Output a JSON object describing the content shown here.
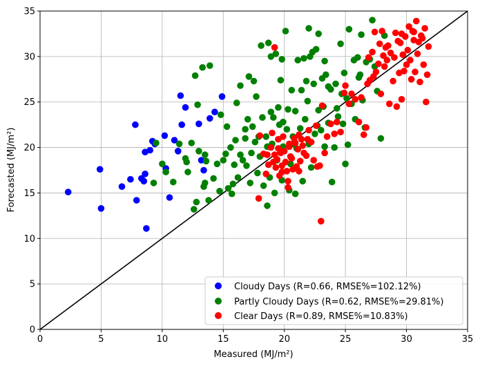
{
  "chart_data": {
    "type": "scatter",
    "xlabel": "Measured (MJ/m²)",
    "ylabel": "Forecasted (MJ/m²)",
    "xlim": [
      0,
      35
    ],
    "ylim": [
      0,
      35
    ],
    "xticks": [
      0,
      5,
      10,
      15,
      20,
      25,
      30,
      35
    ],
    "yticks": [
      0,
      5,
      10,
      15,
      20,
      25,
      30,
      35
    ],
    "grid": true,
    "legend_position": "lower-right",
    "reference_line": {
      "x": [
        0,
        35
      ],
      "y": [
        0,
        35
      ],
      "color": "#000000"
    },
    "series": [
      {
        "name": "Cloudy Days (R=0.66, RMSE%=102.12%)",
        "color": "#0000ff",
        "points": [
          [
            2.3,
            15.1
          ],
          [
            4.9,
            17.6
          ],
          [
            5.0,
            13.3
          ],
          [
            6.7,
            15.7
          ],
          [
            7.4,
            16.5
          ],
          [
            7.8,
            22.5
          ],
          [
            7.9,
            14.2
          ],
          [
            8.3,
            16.6
          ],
          [
            8.5,
            16.3
          ],
          [
            8.6,
            17.1
          ],
          [
            8.6,
            19.5
          ],
          [
            8.7,
            11.1
          ],
          [
            9.0,
            19.7
          ],
          [
            9.2,
            20.7
          ],
          [
            9.4,
            20.4
          ],
          [
            10.2,
            21.3
          ],
          [
            10.3,
            17.7
          ],
          [
            10.6,
            14.5
          ],
          [
            11.0,
            20.8
          ],
          [
            11.3,
            19.6
          ],
          [
            11.5,
            25.7
          ],
          [
            11.6,
            22.5
          ],
          [
            11.9,
            24.4
          ],
          [
            13.0,
            22.6
          ],
          [
            13.4,
            17.5
          ],
          [
            13.9,
            23.2
          ],
          [
            14.3,
            23.9
          ],
          [
            14.9,
            25.6
          ],
          [
            13.2,
            18.6
          ]
        ]
      },
      {
        "name": "Partly Cloudy Days (R=0.62, RMSE%=29.81%)",
        "color": "#008000",
        "points": [
          [
            9.3,
            16.1
          ],
          [
            9.5,
            20.5
          ],
          [
            10.0,
            18.2
          ],
          [
            10.3,
            17.3
          ],
          [
            10.9,
            16.2
          ],
          [
            11.4,
            20.4
          ],
          [
            11.9,
            18.8
          ],
          [
            12.0,
            18.4
          ],
          [
            12.1,
            17.3
          ],
          [
            12.4,
            20.5
          ],
          [
            12.6,
            13.2
          ],
          [
            12.8,
            14.0
          ],
          [
            13.0,
            19.6
          ],
          [
            13.4,
            15.7
          ],
          [
            13.5,
            16.1
          ],
          [
            13.6,
            18.5
          ],
          [
            13.5,
            19.2
          ],
          [
            13.8,
            14.2
          ],
          [
            14.2,
            16.6
          ],
          [
            14.5,
            18.2
          ],
          [
            14.7,
            15.2
          ],
          [
            15.0,
            18.6
          ],
          [
            15.2,
            19.3
          ],
          [
            15.4,
            15.5
          ],
          [
            15.6,
            20.0
          ],
          [
            15.8,
            16.0
          ],
          [
            15.9,
            18.1
          ],
          [
            16.2,
            16.7
          ],
          [
            16.4,
            19.2
          ],
          [
            16.6,
            18.6
          ],
          [
            16.8,
            21.0
          ],
          [
            16.9,
            18.0
          ],
          [
            17.2,
            16.1
          ],
          [
            17.3,
            19.4
          ],
          [
            17.6,
            20.6
          ],
          [
            17.8,
            17.2
          ],
          [
            18.0,
            19.0
          ],
          [
            18.3,
            15.8
          ],
          [
            18.5,
            21.2
          ],
          [
            18.6,
            13.6
          ],
          [
            18.8,
            16.7
          ],
          [
            19.0,
            20.4
          ],
          [
            19.2,
            15.0
          ],
          [
            19.4,
            18.6
          ],
          [
            19.6,
            22.5
          ],
          [
            19.8,
            16.4
          ],
          [
            19.9,
            20.1
          ],
          [
            20.2,
            22.0
          ],
          [
            20.4,
            15.3
          ],
          [
            20.5,
            18.2
          ],
          [
            20.7,
            21.2
          ],
          [
            20.9,
            14.9
          ],
          [
            21.0,
            19.9
          ],
          [
            21.3,
            22.1
          ],
          [
            21.5,
            16.3
          ],
          [
            21.7,
            23.1
          ],
          [
            22.0,
            20.4
          ],
          [
            22.2,
            17.8
          ],
          [
            22.5,
            21.5
          ],
          [
            22.8,
            24.1
          ],
          [
            23.0,
            21.9
          ],
          [
            23.3,
            20.1
          ],
          [
            23.6,
            22.7
          ],
          [
            23.9,
            16.2
          ],
          [
            24.1,
            20.0
          ],
          [
            24.4,
            23.4
          ],
          [
            24.7,
            25.9
          ],
          [
            25.0,
            18.2
          ],
          [
            25.2,
            20.3
          ],
          [
            25.5,
            24.8
          ],
          [
            25.8,
            23.1
          ],
          [
            26.1,
            27.7
          ],
          [
            26.4,
            25.2
          ],
          [
            26.6,
            22.2
          ],
          [
            27.0,
            29.7
          ],
          [
            27.2,
            34.0
          ],
          [
            27.6,
            26.2
          ],
          [
            27.9,
            21.0
          ],
          [
            28.2,
            32.3
          ],
          [
            12.7,
            27.9
          ],
          [
            13.3,
            28.8
          ],
          [
            13.9,
            29.0
          ],
          [
            12.9,
            24.7
          ],
          [
            14.8,
            23.6
          ],
          [
            15.3,
            22.3
          ],
          [
            16.1,
            24.9
          ],
          [
            16.4,
            26.8
          ],
          [
            17.1,
            27.8
          ],
          [
            17.5,
            27.3
          ],
          [
            17.7,
            25.6
          ],
          [
            18.1,
            31.2
          ],
          [
            18.7,
            31.5
          ],
          [
            18.9,
            30.0
          ],
          [
            19.3,
            30.3
          ],
          [
            19.7,
            27.4
          ],
          [
            20.1,
            32.8
          ],
          [
            20.6,
            26.3
          ],
          [
            21.1,
            29.6
          ],
          [
            21.6,
            29.8
          ],
          [
            22.0,
            33.1
          ],
          [
            22.3,
            30.5
          ],
          [
            22.6,
            30.8
          ],
          [
            22.8,
            32.5
          ],
          [
            23.1,
            27.6
          ],
          [
            23.4,
            28.0
          ],
          [
            23.8,
            26.4
          ],
          [
            24.2,
            27.0
          ],
          [
            24.6,
            31.4
          ],
          [
            24.9,
            28.2
          ],
          [
            25.3,
            33.0
          ],
          [
            25.7,
            29.6
          ],
          [
            26.0,
            29.9
          ],
          [
            26.3,
            32.4
          ],
          [
            26.7,
            29.4
          ],
          [
            16.8,
            22.0
          ],
          [
            17.4,
            22.3
          ],
          [
            18.2,
            23.3
          ],
          [
            18.9,
            23.9
          ],
          [
            19.5,
            24.4
          ],
          [
            19.9,
            22.8
          ],
          [
            20.3,
            24.2
          ],
          [
            21.4,
            26.3
          ],
          [
            21.9,
            25.1
          ],
          [
            22.4,
            27.0
          ],
          [
            23.6,
            26.7
          ],
          [
            24.3,
            24.3
          ],
          [
            25.1,
            25.4
          ],
          [
            26.2,
            28.0
          ],
          [
            27.4,
            28.9
          ],
          [
            17.9,
            21.2
          ],
          [
            18.6,
            20.1
          ],
          [
            19.1,
            23.3
          ],
          [
            20.7,
            20.4
          ],
          [
            22.7,
            22.4
          ],
          [
            23.2,
            24.5
          ],
          [
            24.8,
            22.6
          ],
          [
            16.0,
            20.8
          ],
          [
            15.7,
            14.9
          ],
          [
            17.0,
            23.1
          ],
          [
            21.8,
            27.3
          ],
          [
            23.3,
            29.5
          ],
          [
            22.1,
            30.0
          ],
          [
            20.9,
            24.0
          ],
          [
            19.8,
            29.7
          ]
        ]
      },
      {
        "name": "Clear Days (R=0.89, RMSE%=10.83%)",
        "color": "#ff0000",
        "points": [
          [
            17.9,
            14.4
          ],
          [
            18.0,
            21.3
          ],
          [
            18.3,
            19.3
          ],
          [
            18.5,
            17.1
          ],
          [
            18.7,
            18.1
          ],
          [
            18.9,
            20.0
          ],
          [
            19.0,
            21.6
          ],
          [
            19.1,
            18.4
          ],
          [
            19.2,
            19.2
          ],
          [
            19.3,
            17.8
          ],
          [
            19.4,
            18.7
          ],
          [
            19.5,
            20.9
          ],
          [
            19.6,
            16.9
          ],
          [
            19.7,
            19.4
          ],
          [
            19.8,
            18.0
          ],
          [
            19.9,
            21.2
          ],
          [
            20.0,
            19.6
          ],
          [
            20.1,
            18.4
          ],
          [
            20.2,
            17.4
          ],
          [
            20.3,
            16.3
          ],
          [
            20.4,
            20.4
          ],
          [
            20.5,
            19.0
          ],
          [
            20.6,
            18.8
          ],
          [
            20.7,
            17.6
          ],
          [
            20.8,
            21.0
          ],
          [
            20.9,
            20.5
          ],
          [
            21.0,
            17.9
          ],
          [
            21.1,
            19.8
          ],
          [
            21.2,
            21.4
          ],
          [
            21.3,
            18.5
          ],
          [
            21.4,
            20.9
          ],
          [
            21.5,
            20.2
          ],
          [
            21.6,
            19.4
          ],
          [
            21.8,
            19.1
          ],
          [
            22.0,
            21.9
          ],
          [
            22.2,
            20.6
          ],
          [
            22.4,
            18.6
          ],
          [
            22.6,
            22.4
          ],
          [
            22.9,
            18.0
          ],
          [
            23.1,
            24.6
          ],
          [
            23.3,
            19.4
          ],
          [
            23.5,
            21.2
          ],
          [
            23.8,
            22.6
          ],
          [
            24.1,
            21.5
          ],
          [
            24.3,
            22.8
          ],
          [
            24.6,
            21.7
          ],
          [
            24.9,
            26.0
          ],
          [
            25.0,
            26.8
          ],
          [
            25.5,
            25.9
          ],
          [
            25.8,
            25.3
          ],
          [
            26.1,
            22.8
          ],
          [
            26.3,
            25.5
          ],
          [
            26.5,
            21.4
          ],
          [
            26.8,
            27.0
          ],
          [
            27.0,
            27.4
          ],
          [
            27.3,
            27.8
          ],
          [
            27.5,
            28.3
          ],
          [
            27.7,
            29.2
          ],
          [
            27.9,
            25.9
          ],
          [
            28.1,
            30.1
          ],
          [
            28.2,
            28.9
          ],
          [
            28.4,
            29.6
          ],
          [
            28.5,
            31.2
          ],
          [
            28.6,
            24.8
          ],
          [
            28.7,
            30.4
          ],
          [
            28.9,
            27.3
          ],
          [
            29.0,
            29.9
          ],
          [
            29.1,
            32.6
          ],
          [
            29.2,
            24.5
          ],
          [
            29.4,
            28.2
          ],
          [
            29.5,
            31.5
          ],
          [
            29.6,
            25.3
          ],
          [
            29.7,
            30.2
          ],
          [
            29.8,
            28.4
          ],
          [
            29.9,
            32.2
          ],
          [
            30.0,
            29.1
          ],
          [
            30.1,
            30.7
          ],
          [
            30.2,
            33.3
          ],
          [
            30.3,
            29.6
          ],
          [
            30.4,
            27.5
          ],
          [
            30.5,
            32.8
          ],
          [
            30.6,
            31.8
          ],
          [
            30.7,
            28.3
          ],
          [
            30.8,
            33.9
          ],
          [
            30.9,
            30.3
          ],
          [
            31.0,
            31.6
          ],
          [
            31.1,
            27.2
          ],
          [
            31.2,
            32.3
          ],
          [
            31.4,
            29.1
          ],
          [
            31.5,
            33.1
          ],
          [
            31.6,
            25.0
          ],
          [
            31.7,
            28.0
          ],
          [
            31.8,
            31.1
          ],
          [
            23.0,
            11.9
          ],
          [
            21.2,
            17.4
          ],
          [
            22.7,
            17.9
          ],
          [
            20.3,
            15.6
          ],
          [
            19.8,
            17.3
          ],
          [
            26.7,
            22.2
          ],
          [
            25.3,
            24.8
          ],
          [
            27.4,
            32.7
          ],
          [
            28.0,
            32.8
          ],
          [
            29.6,
            32.5
          ],
          [
            31.3,
            32.0
          ],
          [
            28.3,
            31.0
          ],
          [
            29.3,
            31.7
          ],
          [
            30.6,
            32.7
          ],
          [
            26.9,
            29.9
          ],
          [
            27.2,
            30.5
          ],
          [
            27.8,
            31.4
          ],
          [
            19.2,
            31.0
          ],
          [
            20.4,
            20.1
          ],
          [
            21.9,
            20.9
          ],
          [
            18.6,
            19.2
          ],
          [
            19.5,
            19.9
          ]
        ]
      }
    ]
  }
}
